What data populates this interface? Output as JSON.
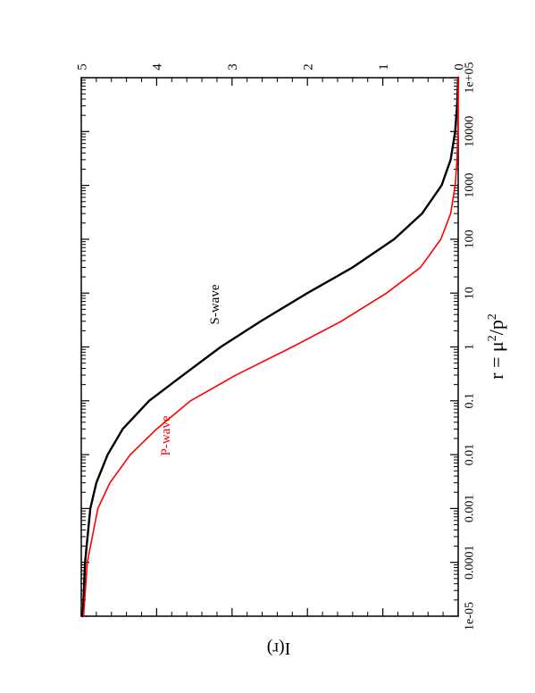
{
  "chart_data": {
    "type": "line",
    "orientation": "rotated-90",
    "xlabel_prefix": "r = μ",
    "xlabel_sup1": "2",
    "xlabel_mid": "/p",
    "xlabel_sup2": "2",
    "ylabel": "I(r)",
    "xscale": "log",
    "xlim": [
      1e-05,
      100000
    ],
    "ylim": [
      0,
      5
    ],
    "xtick_labels": [
      "1e-05",
      "0.0001",
      "0.001",
      "0.01",
      "0.1",
      "1",
      "10",
      "100",
      "1000",
      "10000",
      "1e+05"
    ],
    "ytick_labels": [
      "0",
      "1",
      "2",
      "3",
      "4",
      "5"
    ],
    "grid": false,
    "series": [
      {
        "name": "S-wave",
        "color": "#000000",
        "x": [
          1e-05,
          0.0001,
          0.001,
          0.003,
          0.01,
          0.03,
          0.1,
          0.3,
          1,
          3,
          10,
          30,
          100,
          300,
          1000,
          3000,
          10000,
          30000,
          100000
        ],
        "y": [
          4.98,
          4.95,
          4.88,
          4.8,
          4.65,
          4.45,
          4.1,
          3.65,
          3.15,
          2.62,
          2.0,
          1.4,
          0.85,
          0.48,
          0.22,
          0.1,
          0.04,
          0.015,
          0.0
        ]
      },
      {
        "name": "P-wave",
        "color": "#ff0000",
        "x": [
          1e-05,
          0.0001,
          0.001,
          0.003,
          0.01,
          0.03,
          0.1,
          0.3,
          1,
          3,
          10,
          30,
          100,
          300,
          1000,
          3000,
          10000,
          30000,
          100000
        ],
        "y": [
          4.97,
          4.92,
          4.78,
          4.62,
          4.35,
          4.0,
          3.55,
          2.95,
          2.2,
          1.55,
          0.95,
          0.5,
          0.23,
          0.1,
          0.04,
          0.015,
          0.005,
          0.002,
          0.0
        ]
      }
    ]
  }
}
